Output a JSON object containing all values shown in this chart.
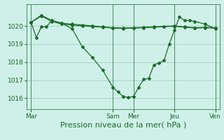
{
  "bg_color": "#cff0e8",
  "grid_color": "#99ccbb",
  "line_color": "#1a6b2a",
  "marker_color": "#1a6b2a",
  "xlabel": "Pression niveau de la mer( hPa )",
  "xlabel_fontsize": 8,
  "yticks": [
    1016,
    1017,
    1018,
    1019,
    1020
  ],
  "ylim": [
    1015.4,
    1021.2
  ],
  "xlim": [
    -5,
    221
  ],
  "xtick_labels": [
    "Mar",
    "Sam",
    "Mer",
    "Jeu",
    "Ven"
  ],
  "xtick_positions": [
    0,
    96,
    120,
    168,
    216
  ],
  "vlines": [
    0,
    96,
    120,
    168,
    216
  ],
  "series1_x": [
    0,
    12,
    24,
    36,
    48,
    60,
    72,
    84,
    96,
    108,
    120,
    132,
    144,
    156,
    168,
    180,
    192,
    204,
    216
  ],
  "series1_y": [
    1020.2,
    1020.6,
    1020.3,
    1020.15,
    1020.1,
    1020.05,
    1020.0,
    1019.95,
    1019.9,
    1019.88,
    1019.9,
    1019.92,
    1019.95,
    1019.98,
    1020.0,
    1019.95,
    1019.9,
    1019.92,
    1019.9
  ],
  "series2_x": [
    0,
    12,
    24,
    36,
    48,
    60,
    72,
    84,
    96,
    108,
    120,
    132,
    144,
    156,
    168,
    180,
    192,
    204,
    216
  ],
  "series2_y": [
    1020.2,
    1020.55,
    1020.25,
    1020.1,
    1020.05,
    1020.0,
    1019.97,
    1019.93,
    1019.88,
    1019.86,
    1019.88,
    1019.9,
    1019.93,
    1019.96,
    1019.98,
    1019.93,
    1019.88,
    1019.9,
    1019.88
  ],
  "series3_x": [
    0,
    6,
    12,
    18,
    24,
    36,
    48,
    60,
    72,
    84,
    96,
    102,
    108,
    114,
    120,
    126,
    132,
    138,
    144,
    150,
    156,
    162,
    168,
    174,
    180,
    186,
    192,
    204,
    216
  ],
  "series3_y": [
    1020.2,
    1019.35,
    1019.95,
    1019.95,
    1020.3,
    1020.15,
    1019.85,
    1018.85,
    1018.25,
    1017.55,
    1016.6,
    1016.35,
    1016.1,
    1016.05,
    1016.1,
    1016.6,
    1017.05,
    1017.1,
    1017.85,
    1017.95,
    1018.1,
    1019.0,
    1019.75,
    1020.5,
    1020.3,
    1020.3,
    1020.25,
    1020.1,
    1019.85
  ]
}
